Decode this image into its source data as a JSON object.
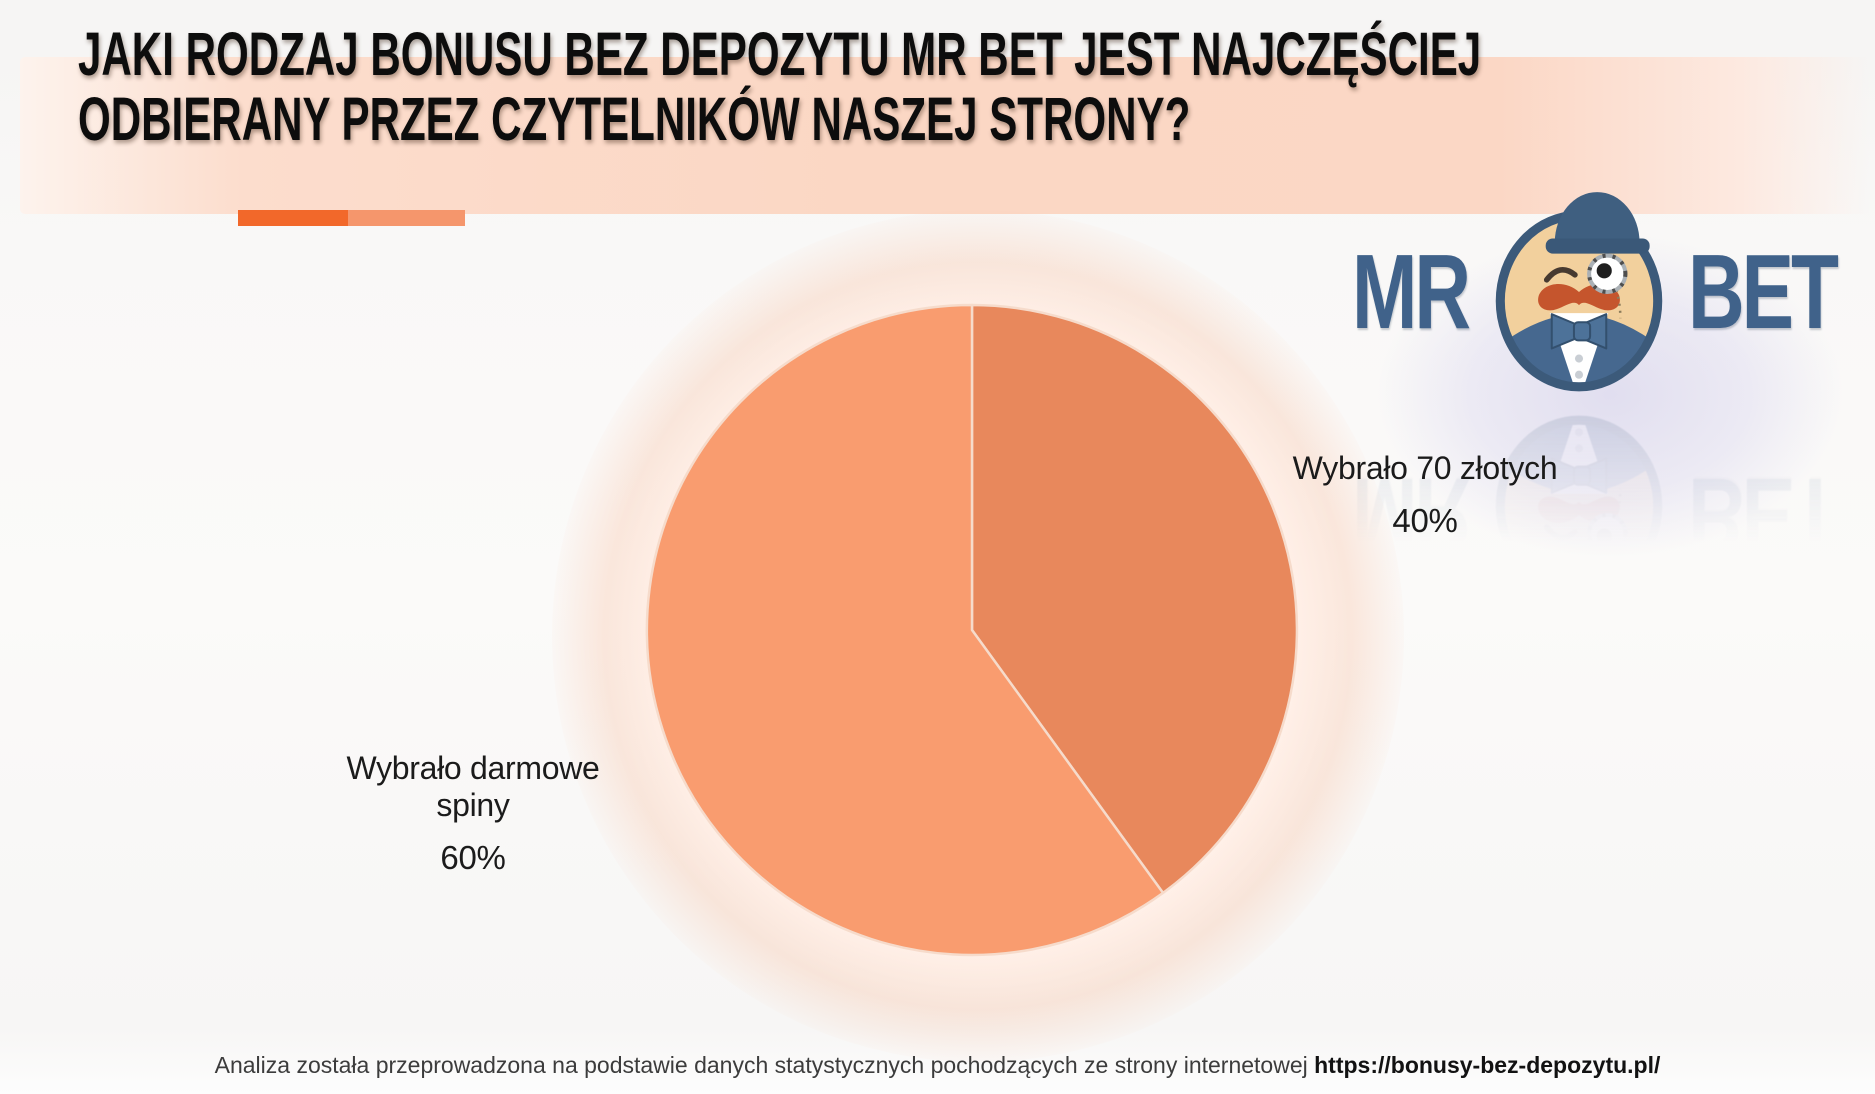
{
  "header": {
    "title": "JAKI RODZAJ BONUSU BEZ DEPOZYTU MR BET JEST NAJCZĘŚCIEJ ODBIERANY PRZEZ CZYTELNIKÓW NASZEJ STRONY?",
    "title_lines": [
      "JAKI RODZAJ BONUSU BEZ DEPOZYTU MR BET JEST NAJCZĘŚCIEJ",
      "ODBIERANY PRZEZ CZYTELNIKÓW NASZEJ STRONY?"
    ]
  },
  "divider": {
    "left_color": "#f2682a",
    "right_color": "#f5966c"
  },
  "logo": {
    "brand_left": "MR",
    "brand_right": "BET",
    "brand_color": "#40628a",
    "mascot": "mr-bet-monocle-gentleman-mascot"
  },
  "chart_data": {
    "type": "pie",
    "title": "",
    "start_angle_deg": 0,
    "direction": "clockwise",
    "separator_color": "#f6dbcb",
    "legend_position": "none",
    "slices": [
      {
        "label": "Wybrało 70 złotych",
        "value": 40,
        "percent_label": "40%",
        "color": "#e8885c",
        "label_side": "right"
      },
      {
        "label": "Wybrało darmowe spiny",
        "value": 60,
        "percent_label": "60%",
        "color": "#f99c6f",
        "label_side": "left"
      }
    ]
  },
  "footer": {
    "text": "Analiza została przeprowadzona na podstawie danych statystycznych pochodzących ze strony internetowej",
    "url": "https://bonusy-bez-depozytu.pl/"
  }
}
